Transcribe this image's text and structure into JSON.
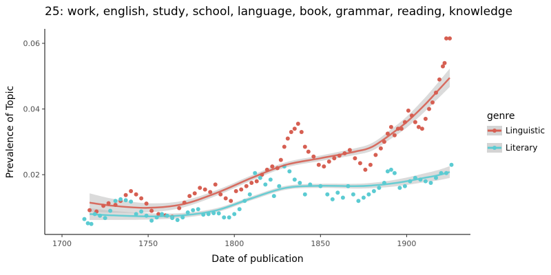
{
  "chart_data": {
    "type": "scatter",
    "title": "25: work, english, study, school, language, book, grammar, reading, knowledge",
    "xlabel": "Date of publication",
    "ylabel": "Prevalence of Topic",
    "xlim": [
      1690,
      1937
    ],
    "ylim": [
      0.0018,
      0.0644
    ],
    "xticks": [
      1700,
      1750,
      1800,
      1850,
      1900
    ],
    "xtick_labels": [
      "1700",
      "1750",
      "1800",
      "1850",
      "1900"
    ],
    "yticks": [
      0.02,
      0.04,
      0.06
    ],
    "ytick_labels": [
      "0.02",
      "0.04",
      "0.06"
    ],
    "grid": false,
    "legend": {
      "title": "genre",
      "placement": "right"
    },
    "series": [
      {
        "name": "Linguistic",
        "color": "#d65f52",
        "points": [
          [
            1716,
            0.0092
          ],
          [
            1720,
            0.0088
          ],
          [
            1724,
            0.0105
          ],
          [
            1727,
            0.0113
          ],
          [
            1731,
            0.0108
          ],
          [
            1734,
            0.012
          ],
          [
            1737,
            0.0138
          ],
          [
            1740,
            0.015
          ],
          [
            1743,
            0.014
          ],
          [
            1746,
            0.0128
          ],
          [
            1749,
            0.0112
          ],
          [
            1752,
            0.009
          ],
          [
            1756,
            0.008
          ],
          [
            1760,
            0.0076
          ],
          [
            1764,
            0.0072
          ],
          [
            1768,
            0.0098
          ],
          [
            1771,
            0.0115
          ],
          [
            1774,
            0.0135
          ],
          [
            1777,
            0.0143
          ],
          [
            1780,
            0.016
          ],
          [
            1783,
            0.0155
          ],
          [
            1786,
            0.0147
          ],
          [
            1789,
            0.017
          ],
          [
            1792,
            0.014
          ],
          [
            1795,
            0.0128
          ],
          [
            1798,
            0.012
          ],
          [
            1801,
            0.015
          ],
          [
            1804,
            0.0155
          ],
          [
            1807,
            0.0165
          ],
          [
            1810,
            0.0175
          ],
          [
            1813,
            0.018
          ],
          [
            1816,
            0.02
          ],
          [
            1819,
            0.0215
          ],
          [
            1822,
            0.0225
          ],
          [
            1825,
            0.022
          ],
          [
            1827,
            0.0245
          ],
          [
            1829,
            0.0285
          ],
          [
            1831,
            0.031
          ],
          [
            1833,
            0.033
          ],
          [
            1835,
            0.034
          ],
          [
            1837,
            0.0355
          ],
          [
            1839,
            0.033
          ],
          [
            1841,
            0.0285
          ],
          [
            1843,
            0.027
          ],
          [
            1846,
            0.0255
          ],
          [
            1849,
            0.023
          ],
          [
            1852,
            0.0225
          ],
          [
            1855,
            0.024
          ],
          [
            1858,
            0.025
          ],
          [
            1861,
            0.0258
          ],
          [
            1864,
            0.0265
          ],
          [
            1867,
            0.0275
          ],
          [
            1870,
            0.025
          ],
          [
            1873,
            0.0235
          ],
          [
            1876,
            0.0215
          ],
          [
            1879,
            0.023
          ],
          [
            1882,
            0.026
          ],
          [
            1885,
            0.028
          ],
          [
            1887,
            0.03
          ],
          [
            1889,
            0.0325
          ],
          [
            1891,
            0.0345
          ],
          [
            1893,
            0.032
          ],
          [
            1895,
            0.034
          ],
          [
            1897,
            0.034
          ],
          [
            1899,
            0.036
          ],
          [
            1901,
            0.0395
          ],
          [
            1903,
            0.038
          ],
          [
            1905,
            0.036
          ],
          [
            1907,
            0.0345
          ],
          [
            1909,
            0.034
          ],
          [
            1911,
            0.037
          ],
          [
            1913,
            0.04
          ],
          [
            1915,
            0.042
          ],
          [
            1917,
            0.045
          ],
          [
            1919,
            0.049
          ],
          [
            1921,
            0.053
          ],
          [
            1922,
            0.054
          ],
          [
            1923,
            0.0615
          ],
          [
            1925,
            0.0615
          ]
        ],
        "trend": [
          [
            1716,
            0.0115
          ],
          [
            1730,
            0.0105
          ],
          [
            1750,
            0.0099
          ],
          [
            1770,
            0.011
          ],
          [
            1790,
            0.0145
          ],
          [
            1810,
            0.019
          ],
          [
            1830,
            0.023
          ],
          [
            1850,
            0.025
          ],
          [
            1870,
            0.027
          ],
          [
            1880,
            0.0285
          ],
          [
            1890,
            0.032
          ],
          [
            1900,
            0.036
          ],
          [
            1910,
            0.041
          ],
          [
            1918,
            0.0455
          ],
          [
            1925,
            0.0495
          ]
        ]
      },
      {
        "name": "Literary",
        "color": "#5bcbd2",
        "points": [
          [
            1713,
            0.0065
          ],
          [
            1715,
            0.0052
          ],
          [
            1717,
            0.005
          ],
          [
            1719,
            0.008
          ],
          [
            1722,
            0.0075
          ],
          [
            1725,
            0.0068
          ],
          [
            1728,
            0.009
          ],
          [
            1731,
            0.012
          ],
          [
            1734,
            0.0125
          ],
          [
            1737,
            0.0122
          ],
          [
            1740,
            0.0118
          ],
          [
            1743,
            0.008
          ],
          [
            1746,
            0.0088
          ],
          [
            1749,
            0.0075
          ],
          [
            1752,
            0.006
          ],
          [
            1755,
            0.007
          ],
          [
            1758,
            0.008
          ],
          [
            1761,
            0.0075
          ],
          [
            1764,
            0.0068
          ],
          [
            1767,
            0.0062
          ],
          [
            1770,
            0.007
          ],
          [
            1773,
            0.0085
          ],
          [
            1776,
            0.0092
          ],
          [
            1779,
            0.0095
          ],
          [
            1782,
            0.0078
          ],
          [
            1785,
            0.008
          ],
          [
            1788,
            0.0083
          ],
          [
            1791,
            0.0082
          ],
          [
            1794,
            0.007
          ],
          [
            1797,
            0.007
          ],
          [
            1800,
            0.008
          ],
          [
            1803,
            0.0095
          ],
          [
            1806,
            0.012
          ],
          [
            1809,
            0.014
          ],
          [
            1812,
            0.0205
          ],
          [
            1815,
            0.019
          ],
          [
            1818,
            0.017
          ],
          [
            1821,
            0.0185
          ],
          [
            1823,
            0.0135
          ],
          [
            1826,
            0.0165
          ],
          [
            1829,
            0.0225
          ],
          [
            1832,
            0.021
          ],
          [
            1835,
            0.0185
          ],
          [
            1838,
            0.0175
          ],
          [
            1841,
            0.014
          ],
          [
            1844,
            0.017
          ],
          [
            1850,
            0.0165
          ],
          [
            1854,
            0.014
          ],
          [
            1857,
            0.0125
          ],
          [
            1860,
            0.0145
          ],
          [
            1863,
            0.013
          ],
          [
            1866,
            0.0165
          ],
          [
            1869,
            0.014
          ],
          [
            1872,
            0.012
          ],
          [
            1875,
            0.013
          ],
          [
            1878,
            0.014
          ],
          [
            1881,
            0.015
          ],
          [
            1884,
            0.016
          ],
          [
            1887,
            0.0175
          ],
          [
            1889,
            0.021
          ],
          [
            1891,
            0.0215
          ],
          [
            1893,
            0.0205
          ],
          [
            1896,
            0.016
          ],
          [
            1899,
            0.0165
          ],
          [
            1902,
            0.018
          ],
          [
            1905,
            0.019
          ],
          [
            1908,
            0.0185
          ],
          [
            1911,
            0.018
          ],
          [
            1914,
            0.0175
          ],
          [
            1917,
            0.019
          ],
          [
            1920,
            0.0205
          ],
          [
            1923,
            0.0205
          ],
          [
            1926,
            0.023
          ]
        ],
        "trend": [
          [
            1716,
            0.008
          ],
          [
            1730,
            0.0076
          ],
          [
            1750,
            0.0073
          ],
          [
            1770,
            0.0076
          ],
          [
            1790,
            0.0092
          ],
          [
            1810,
            0.0128
          ],
          [
            1830,
            0.016
          ],
          [
            1850,
            0.0166
          ],
          [
            1870,
            0.0165
          ],
          [
            1880,
            0.0167
          ],
          [
            1890,
            0.0172
          ],
          [
            1900,
            0.018
          ],
          [
            1910,
            0.019
          ],
          [
            1918,
            0.0198
          ],
          [
            1925,
            0.0208
          ]
        ]
      }
    ]
  }
}
